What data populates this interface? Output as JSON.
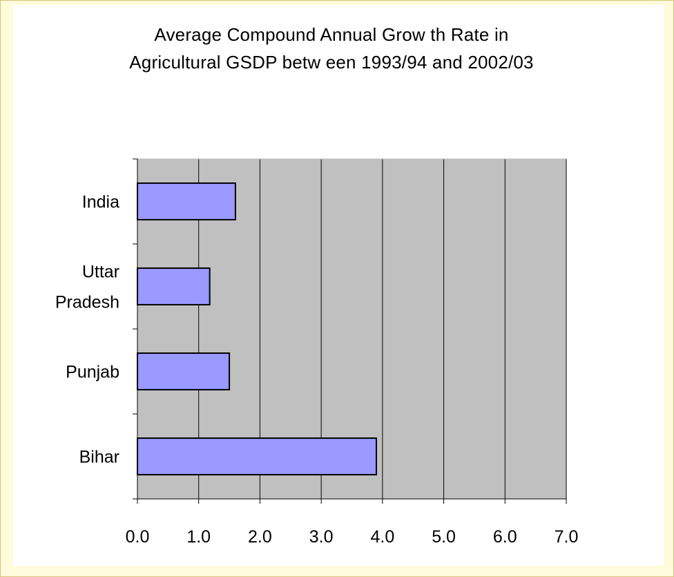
{
  "colors": {
    "background": "#fffbdb",
    "plot_area": "#c0c0c0",
    "bar_fill": "#9999ff",
    "bar_stroke": "#000000"
  },
  "chart_data": {
    "type": "bar",
    "orientation": "horizontal",
    "title": "Average Compound Annual Grow th Rate in Agricultural GSDP betw een 1993/94 and 2002/03",
    "title_lines": [
      "Average Compound Annual Grow th Rate in",
      "Agricultural GSDP betw een 1993/94 and 2002/03"
    ],
    "categories": [
      "India",
      "Uttar Pradesh",
      "Punjab",
      "Bihar"
    ],
    "category_lines": [
      [
        "India"
      ],
      [
        "Uttar",
        "Pradesh"
      ],
      [
        "Punjab"
      ],
      [
        "Bihar"
      ]
    ],
    "values": [
      1.6,
      1.18,
      1.5,
      3.9
    ],
    "xlim": [
      0,
      7
    ],
    "x_ticks": [
      "0.0",
      "1.0",
      "2.0",
      "3.0",
      "4.0",
      "5.0",
      "6.0",
      "7.0"
    ],
    "xlabel": "",
    "ylabel": "",
    "grid": "vertical",
    "legend": "none"
  }
}
